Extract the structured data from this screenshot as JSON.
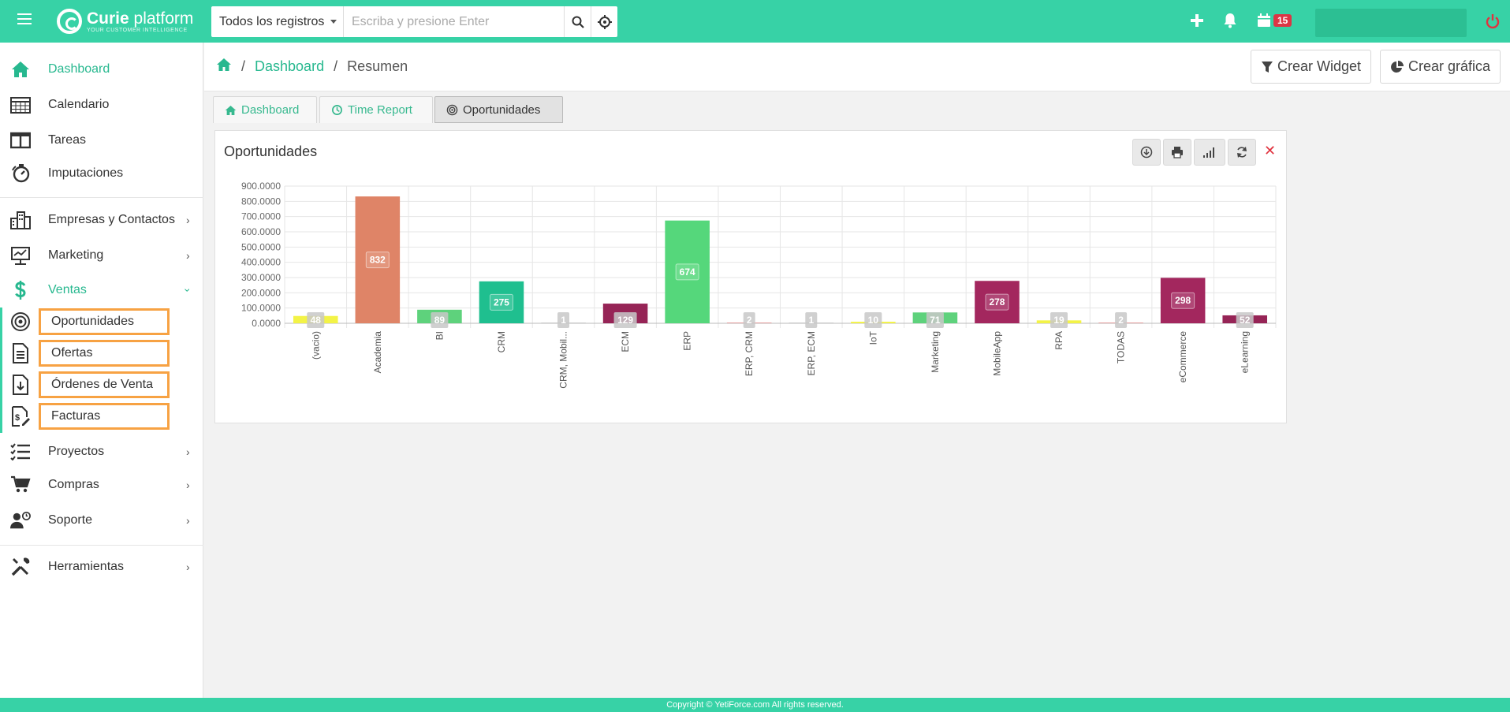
{
  "topbar": {
    "brand_title_bold": "Curie",
    "brand_title_rest": " platform",
    "brand_subtitle": "YOUR CUSTOMER INTELLIGENCE",
    "search_scope": "Todos los registros",
    "search_placeholder": "Escriba y presione Enter",
    "calendar_badge": "15"
  },
  "sidebar": {
    "items": [
      {
        "label": "Dashboard"
      },
      {
        "label": "Calendario"
      },
      {
        "label": "Tareas"
      },
      {
        "label": "Imputaciones"
      },
      {
        "label": "Empresas y Contactos"
      },
      {
        "label": "Marketing"
      },
      {
        "label": "Ventas"
      },
      {
        "label": "Proyectos"
      },
      {
        "label": "Compras"
      },
      {
        "label": "Soporte"
      },
      {
        "label": "Herramientas"
      }
    ],
    "ventas_sub": [
      {
        "label": "Oportunidades"
      },
      {
        "label": "Ofertas"
      },
      {
        "label": "Órdenes de Venta"
      },
      {
        "label": "Facturas"
      }
    ]
  },
  "header": {
    "breadcrumb_dashboard": "Dashboard",
    "breadcrumb_current": "Resumen",
    "create_widget": "Crear Widget",
    "create_chart": "Crear gráfica"
  },
  "tabs": [
    {
      "label": "Dashboard"
    },
    {
      "label": "Time Report"
    },
    {
      "label": "Oportunidades"
    }
  ],
  "widget": {
    "title": "Oportunidades"
  },
  "chart_data": {
    "type": "bar",
    "title": "",
    "xlabel": "",
    "ylabel": "",
    "ylim": [
      0,
      900
    ],
    "yticks": [
      0,
      100,
      200,
      300,
      400,
      500,
      600,
      700,
      800,
      900
    ],
    "ytick_labels": [
      "0.0000",
      "100.0000",
      "200.0000",
      "300.0000",
      "400.0000",
      "500.0000",
      "600.0000",
      "700.0000",
      "800.0000",
      "900.0000"
    ],
    "grid": true,
    "categories": [
      "(vacio)",
      "Academia",
      "BI",
      "CRM",
      "CRM, Mobil...",
      "ECM",
      "ERP",
      "ERP, CRM",
      "ERP, ECM",
      "IoT",
      "Marketing",
      "MobileApp",
      "RPA",
      "TODAS",
      "eCommerce",
      "eLearning"
    ],
    "values": [
      48,
      832,
      89,
      275,
      1,
      129,
      674,
      2,
      1,
      10,
      71,
      278,
      19,
      2,
      298,
      52
    ],
    "colors": [
      "#f3f346",
      "#df8467",
      "#5ed27c",
      "#1fbf8f",
      "#cccccc",
      "#962456",
      "#55d77b",
      "#e6a2a2",
      "#cccccc",
      "#f3f346",
      "#5ed27c",
      "#a3275e",
      "#f3f346",
      "#e6a2a2",
      "#a3275e",
      "#962456"
    ]
  },
  "footer": {
    "text": "Copyright © YetiForce.com All rights reserved."
  }
}
